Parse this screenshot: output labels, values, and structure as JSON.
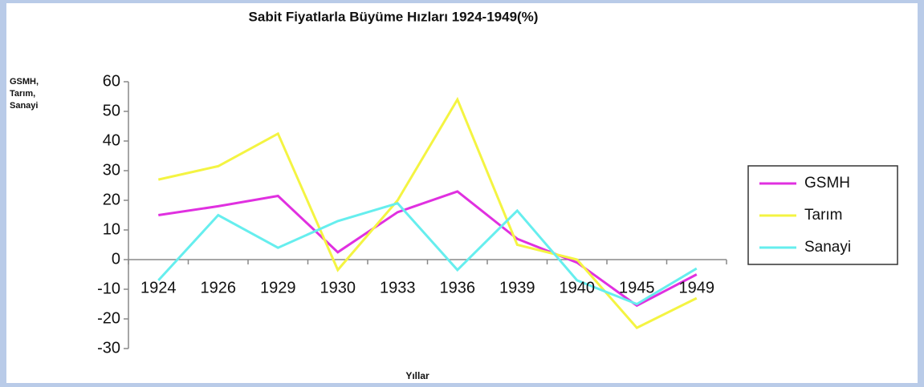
{
  "chart_data": {
    "type": "line",
    "title": "Sabit Fiyatlarla Büyüme Hızları 1924-1949(%)",
    "y_label_lines": [
      "GSMH,",
      "Tarım,",
      "Sanayi"
    ],
    "x_label": "Yıllar",
    "categories": [
      "1924",
      "1926",
      "1929",
      "1930",
      "1933",
      "1936",
      "1939",
      "1940",
      "1945",
      "1949"
    ],
    "series": [
      {
        "name": "GSMH",
        "color": "#e030e0",
        "values": [
          15,
          18,
          21.5,
          2.5,
          16,
          23,
          7,
          -1,
          -15.5,
          -5
        ]
      },
      {
        "name": "Tarım",
        "color": "#f4f442",
        "values": [
          27,
          31.5,
          42.5,
          -3.5,
          20,
          54,
          5,
          0,
          -23,
          -13
        ]
      },
      {
        "name": "Sanayi",
        "color": "#66eeee",
        "values": [
          -7,
          15,
          4,
          13,
          19,
          -3.5,
          16.5,
          -7,
          -15,
          -3
        ]
      }
    ],
    "ylim": [
      -30,
      60
    ],
    "yticks": [
      -30,
      -20,
      -10,
      0,
      10,
      20,
      30,
      40,
      50,
      60
    ],
    "legend": "right"
  }
}
